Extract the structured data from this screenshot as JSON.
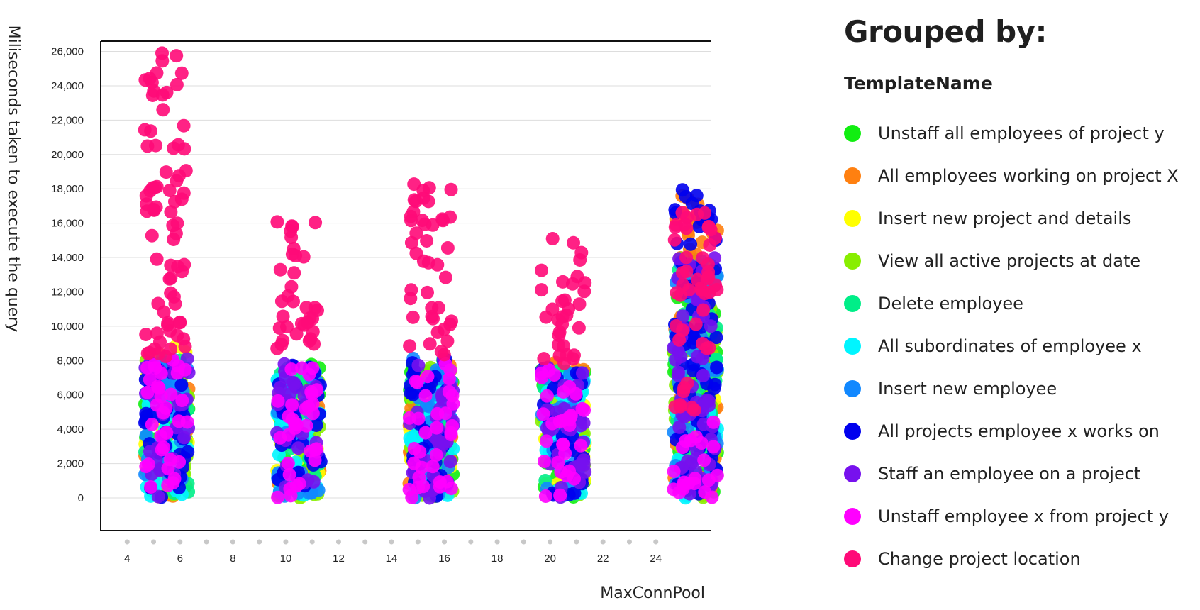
{
  "legend": {
    "title": "Grouped by:",
    "subtitle": "TemplateName"
  },
  "chart_data": {
    "type": "scatter",
    "xlabel": "MaxConnPool",
    "ylabel": "Miliseconds taken to execute the query",
    "xlim": [
      3,
      26.1
    ],
    "ylim": [
      -1900,
      26600
    ],
    "x_ticks": [
      4,
      6,
      8,
      10,
      12,
      14,
      16,
      18,
      20,
      22,
      24
    ],
    "y_ticks": [
      0,
      2000,
      4000,
      6000,
      8000,
      10000,
      12000,
      14000,
      16000,
      18000,
      20000,
      22000,
      24000,
      26000
    ],
    "grid": "horizontal",
    "legend_position": "right",
    "x_groups": [
      5.5,
      10.5,
      15.5,
      20.5,
      25.5
    ],
    "series": [
      {
        "name": "Unstaff all employees of project y",
        "color": "#11ee11",
        "ranges": [
          [
            0,
            8200
          ],
          [
            0,
            7800
          ],
          [
            0,
            8200
          ],
          [
            0,
            7600
          ],
          [
            0,
            14300
          ]
        ]
      },
      {
        "name": "All employees working on project X",
        "color": "#ff8010",
        "ranges": [
          [
            0,
            8000
          ],
          [
            0,
            7500
          ],
          [
            0,
            8000
          ],
          [
            7300,
            8000
          ],
          [
            100,
            18000
          ]
        ]
      },
      {
        "name": "Insert new project and details",
        "color": "#ffff00",
        "ranges": [
          [
            0,
            9100
          ],
          [
            0,
            7000
          ],
          [
            0,
            6400
          ],
          [
            0,
            6200
          ],
          [
            5700,
            6300
          ]
        ]
      },
      {
        "name": "View all active projects at date",
        "color": "#88ee00",
        "ranges": [
          [
            0,
            8200
          ],
          [
            0,
            7000
          ],
          [
            0,
            8000
          ],
          [
            0,
            7400
          ],
          [
            0,
            14000
          ]
        ]
      },
      {
        "name": "Delete employee",
        "color": "#00ee88",
        "ranges": [
          [
            0,
            8200
          ],
          [
            0,
            7800
          ],
          [
            0,
            8200
          ],
          [
            0,
            7600
          ],
          [
            0,
            14200
          ]
        ]
      },
      {
        "name": "All subordinates of employee x",
        "color": "#00f5ff",
        "ranges": [
          [
            0,
            8200
          ],
          [
            0,
            7800
          ],
          [
            0,
            6400
          ],
          [
            0,
            7200
          ],
          [
            0,
            5000
          ]
        ]
      },
      {
        "name": "Insert new employee",
        "color": "#1188ff",
        "ranges": [
          [
            0,
            8200
          ],
          [
            0,
            7800
          ],
          [
            0,
            8200
          ],
          [
            0,
            7600
          ],
          [
            0,
            14200
          ]
        ]
      },
      {
        "name": "All projects employee x works on",
        "color": "#0000ee",
        "ranges": [
          [
            0,
            8200
          ],
          [
            0,
            7800
          ],
          [
            0,
            8200
          ],
          [
            0,
            7600
          ],
          [
            0,
            18000
          ]
        ]
      },
      {
        "name": "Staff an employee on a project",
        "color": "#7711ee",
        "ranges": [
          [
            0,
            8200
          ],
          [
            0,
            7800
          ],
          [
            0,
            8200
          ],
          [
            0,
            7600
          ],
          [
            0,
            14300
          ]
        ]
      },
      {
        "name": "Unstaff employee x from project y",
        "color": "#ff00ff",
        "ranges": [
          [
            0,
            8200
          ],
          [
            0,
            7600
          ],
          [
            0,
            8200
          ],
          [
            0,
            7600
          ],
          [
            0,
            5000
          ]
        ]
      },
      {
        "name": "Change project location",
        "color": "#ff0a78",
        "ranges": [
          [
            8200,
            26300
          ],
          [
            7800,
            16200
          ],
          [
            8200,
            18400
          ],
          [
            7600,
            15300
          ],
          [
            5000,
            16700
          ]
        ]
      }
    ]
  }
}
